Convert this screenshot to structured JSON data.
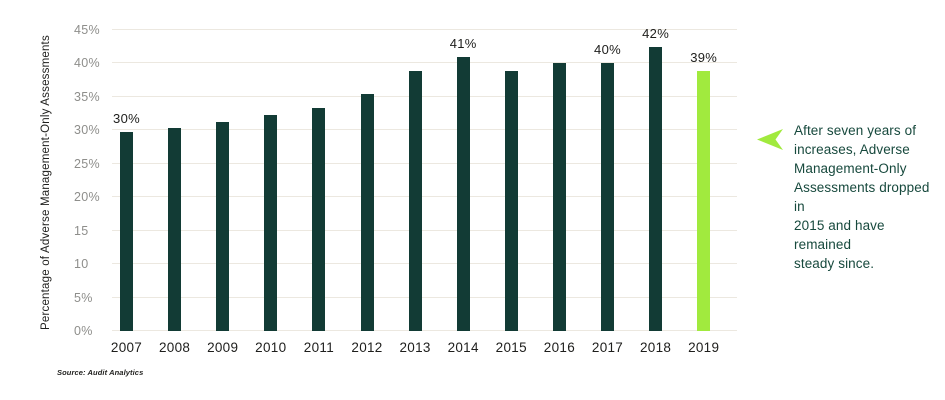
{
  "chart_data": {
    "type": "bar",
    "title": "",
    "xlabel": "",
    "ylabel": "Percentage of Adverse Management-Only Assessments",
    "categories": [
      "2007",
      "2008",
      "2009",
      "2010",
      "2011",
      "2012",
      "2013",
      "2014",
      "2015",
      "2016",
      "2017",
      "2018",
      "2019"
    ],
    "values": [
      29.7,
      30.3,
      31.2,
      32.3,
      33.3,
      35.5,
      38.8,
      41,
      38.8,
      40,
      40,
      42.4,
      38.8
    ],
    "bar_labels": [
      "30%",
      null,
      null,
      null,
      null,
      null,
      null,
      "41%",
      null,
      null,
      "40%",
      "42%",
      "39%"
    ],
    "ylim": [
      0,
      45
    ],
    "ytick_step": 5,
    "ytick_labels": [
      "0%",
      "5%",
      "10",
      "15",
      "20%",
      "25%",
      "30%",
      "35%",
      "40%",
      "45%"
    ],
    "grid": true,
    "legend": false,
    "bar_color_default": "#123b35",
    "bar_color_highlight": "#a1ea3e",
    "highlight_index": 12
  },
  "annotation": {
    "arrow_color": "#a1ea3e",
    "text": "After seven years of\nincreases, Adverse\nManagement-Only\nAssessments dropped in\n2015 and have remained\nsteady since."
  },
  "source": "Source: Audit Analytics"
}
